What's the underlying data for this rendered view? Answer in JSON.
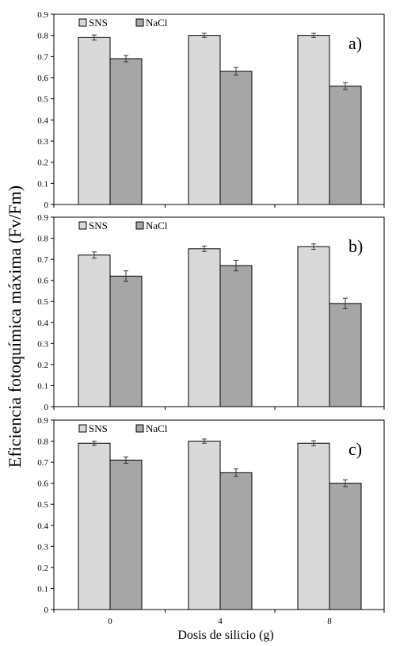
{
  "chart_data": [
    {
      "panel_label": "a)",
      "type": "bar",
      "categories": [
        "0",
        "4",
        "8"
      ],
      "series": [
        {
          "name": "SNS",
          "values": [
            0.79,
            0.8,
            0.8
          ],
          "errors": [
            0.012,
            0.01,
            0.01
          ],
          "color": "#d9d9d9"
        },
        {
          "name": "NaCl",
          "values": [
            0.69,
            0.63,
            0.56
          ],
          "errors": [
            0.015,
            0.018,
            0.016
          ],
          "color": "#a6a6a6"
        }
      ],
      "ylim": [
        0,
        0.9
      ],
      "yticks": [
        "0",
        "0.1",
        "0.2",
        "0.3",
        "0.4",
        "0.5",
        "0.6",
        "0.7",
        "0.8",
        "0.9"
      ],
      "legend": "top-left",
      "grid": false
    },
    {
      "panel_label": "b)",
      "type": "bar",
      "categories": [
        "0",
        "4",
        "8"
      ],
      "series": [
        {
          "name": "SNS",
          "values": [
            0.72,
            0.75,
            0.76
          ],
          "errors": [
            0.015,
            0.013,
            0.013
          ],
          "color": "#d9d9d9"
        },
        {
          "name": "NaCl",
          "values": [
            0.62,
            0.67,
            0.49
          ],
          "errors": [
            0.025,
            0.025,
            0.025
          ],
          "color": "#a6a6a6"
        }
      ],
      "ylim": [
        0,
        0.9
      ],
      "yticks": [
        "0",
        "0.1",
        "0.2",
        "0.3",
        "0.4",
        "0.5",
        "0.6",
        "0.7",
        "0.8",
        "0.9"
      ],
      "legend": "top-left",
      "grid": false
    },
    {
      "panel_label": "c)",
      "type": "bar",
      "categories": [
        "0",
        "4",
        "8"
      ],
      "series": [
        {
          "name": "SNS",
          "values": [
            0.79,
            0.8,
            0.79
          ],
          "errors": [
            0.01,
            0.01,
            0.012
          ],
          "color": "#d9d9d9"
        },
        {
          "name": "NaCl",
          "values": [
            0.71,
            0.65,
            0.6
          ],
          "errors": [
            0.015,
            0.018,
            0.016
          ],
          "color": "#a6a6a6"
        }
      ],
      "ylim": [
        0,
        0.9
      ],
      "yticks": [
        "0",
        "0.1",
        "0.2",
        "0.3",
        "0.4",
        "0.5",
        "0.6",
        "0.7",
        "0.8",
        "0.9"
      ],
      "legend": "top-left",
      "grid": false
    }
  ],
  "axes": {
    "xlabel": "Dosis de silicio  (g)",
    "ylabel": "Eficiencia fotoquímica máxima  (Fv/Fm)"
  }
}
